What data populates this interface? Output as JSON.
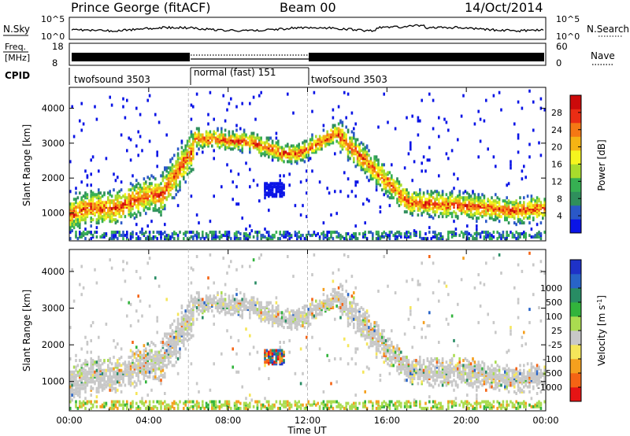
{
  "header": {
    "title": "Prince George (fitACF)",
    "beam": "Beam 00",
    "date": "14/Oct/2014"
  },
  "panels": {
    "nsky_label": "N.Sky",
    "nsky_ticks": [
      "10^5",
      "10^0"
    ],
    "nsearch_label": "N.Search",
    "nsearch_ticks": [
      "10^5",
      "10^0"
    ],
    "freq_label": "Freq.",
    "freq_unit": "[MHz]",
    "freq_ticks": [
      "18",
      "8"
    ],
    "nave_label": "Nave",
    "nave_ticks": [
      "60",
      "0"
    ],
    "cpid_label": "CPID",
    "cpid_segments": [
      "twofsound 3503",
      "normal (fast) 151",
      "twofsound 3503"
    ]
  },
  "colors": {
    "power": [
      "#0a14e6",
      "#2a58c8",
      "#2f8f5c",
      "#36b052",
      "#a8dc2c",
      "#f5f51e",
      "#f5b414",
      "#f57814",
      "#ea2d14",
      "#cc0a0a"
    ],
    "velocity": [
      "#e61414",
      "#f56414",
      "#f5a01e",
      "#f5e65a",
      "#c8c8c8",
      "#aadc50",
      "#32b43c",
      "#288c64",
      "#2864c8",
      "#1e32c8"
    ]
  },
  "chart_data": [
    {
      "type": "heatmap",
      "name": "power",
      "xlabel": "",
      "ylabel": "Slant Range [km]",
      "x_ticks": [
        "00:00",
        "04:00",
        "08:00",
        "12:00",
        "16:00",
        "20:00",
        "00:00"
      ],
      "y_ticks": [
        "1000",
        "2000",
        "3000",
        "4000"
      ],
      "ylim": [
        200,
        4600
      ],
      "xlim_hours": [
        0,
        24
      ],
      "colorbar_label": "Power [dB]",
      "colorbar_ticks": [
        "4",
        "8",
        "12",
        "16",
        "20",
        "24",
        "28"
      ],
      "colorbar_range": [
        0,
        32
      ]
    },
    {
      "type": "heatmap",
      "name": "velocity",
      "xlabel": "Time UT",
      "ylabel": "Slant Range [km]",
      "x_ticks": [
        "00:00",
        "04:00",
        "08:00",
        "12:00",
        "16:00",
        "20:00",
        "00:00"
      ],
      "y_ticks": [
        "1000",
        "2000",
        "3000",
        "4000"
      ],
      "ylim": [
        200,
        4600
      ],
      "xlim_hours": [
        0,
        24
      ],
      "colorbar_label": "Velocity [m s",
      "colorbar_label_sup": "-1",
      "colorbar_label_end": "]",
      "colorbar_ticks": [
        "-1000",
        "-500",
        "-100",
        "-25",
        "25",
        "100",
        "500",
        "1000"
      ]
    }
  ]
}
